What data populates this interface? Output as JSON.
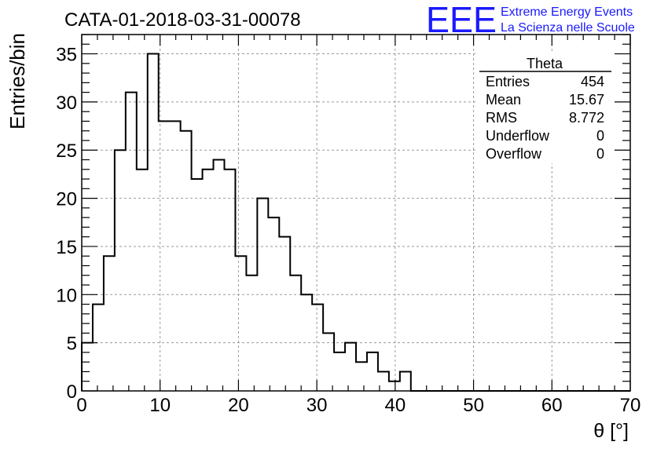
{
  "canvas_title": "CATA-01-2018-03-31-00078",
  "logo": {
    "mark": "EEE",
    "line1": "Extreme Energy Events",
    "line2": "La Scienza nelle Scuole",
    "color": "#1a1aff"
  },
  "stats_box": {
    "title": "Theta",
    "rows": [
      {
        "label": "Entries",
        "value": "454"
      },
      {
        "label": "Mean",
        "value": "15.67"
      },
      {
        "label": "RMS",
        "value": "8.772"
      },
      {
        "label": "Underflow",
        "value": "0"
      },
      {
        "label": "Overflow",
        "value": "0"
      }
    ]
  },
  "chart_data": {
    "type": "bar",
    "style": "step-histogram",
    "xlabel": "θ [°]",
    "ylabel": "Entries/bin",
    "xlim": [
      0,
      70
    ],
    "ylim": [
      0,
      37
    ],
    "bin_width": 1.4,
    "x_ticks": [
      0,
      10,
      20,
      30,
      40,
      50,
      60,
      70
    ],
    "y_ticks": [
      0,
      5,
      10,
      15,
      20,
      25,
      30,
      35
    ],
    "grid": true,
    "values": [
      5,
      9,
      14,
      25,
      31,
      23,
      35,
      28,
      28,
      27,
      22,
      23,
      24,
      23,
      14,
      12,
      20,
      18,
      16,
      12,
      10,
      9,
      6,
      4,
      5,
      3,
      4,
      2,
      1,
      2,
      0,
      0,
      0,
      0,
      0,
      0,
      0,
      0,
      0,
      0,
      0,
      0,
      0,
      0,
      0,
      0,
      0,
      0,
      0,
      0
    ],
    "line_color": "#000000",
    "grid_color": "#9a9a9a"
  }
}
